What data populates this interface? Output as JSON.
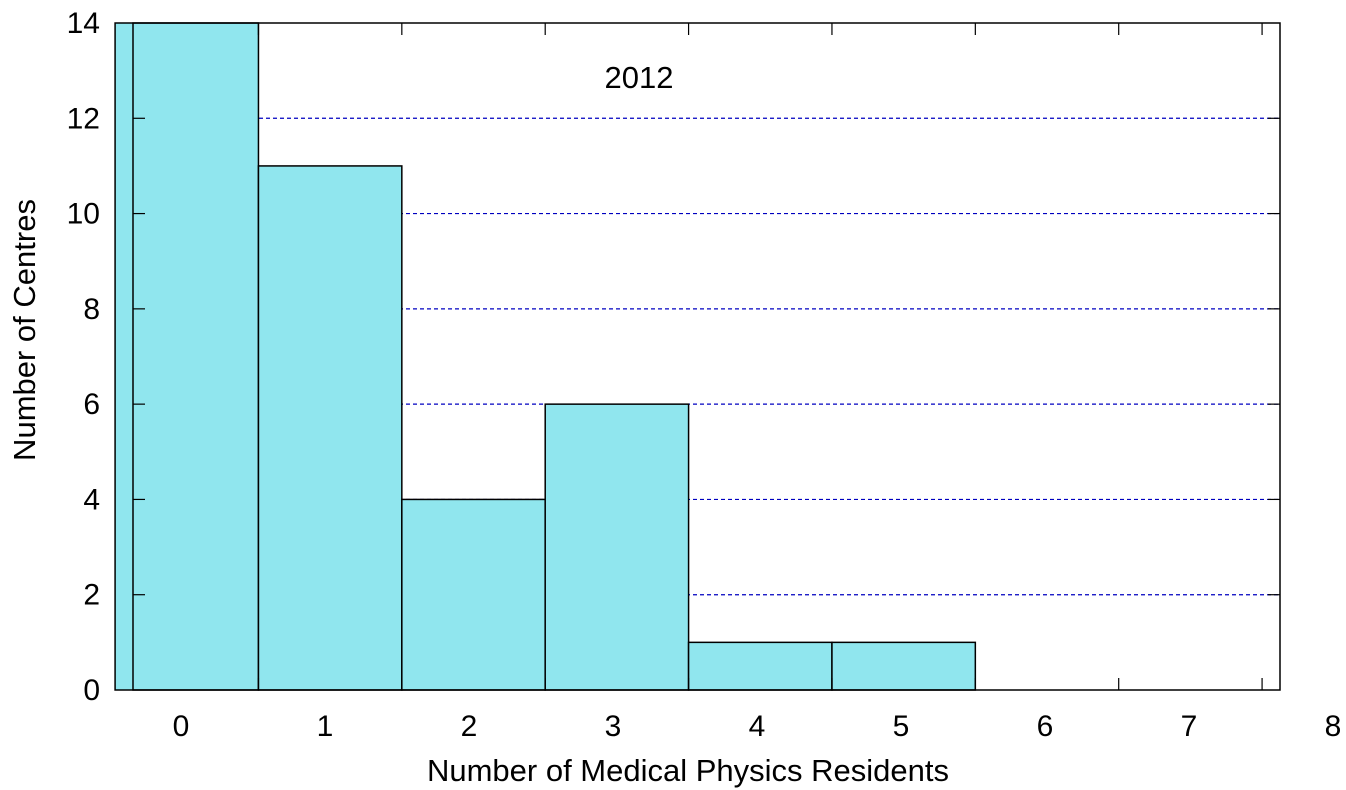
{
  "chart_data": {
    "type": "bar",
    "annotation": "2012",
    "xlabel": "Number of Medical Physics Residents",
    "ylabel": "Number of Centres",
    "categories": [
      "0",
      "1",
      "2",
      "3",
      "4",
      "5",
      "6",
      "7"
    ],
    "values": [
      14,
      11,
      4,
      6,
      1,
      1,
      0,
      0
    ],
    "x_tick_labels": [
      "0",
      "1",
      "2",
      "3",
      "4",
      "5",
      "6",
      "7",
      "8"
    ],
    "y_tick_labels": [
      "0",
      "2",
      "4",
      "6",
      "8",
      "10",
      "12",
      "14"
    ],
    "ylim": [
      0,
      14
    ],
    "grid": "horizontal dashed",
    "legend": "none",
    "colors": {
      "bar_fill": "#90E6EE",
      "bar_stroke": "#000000",
      "grid": "#0000C0",
      "axis": "#000000"
    }
  }
}
